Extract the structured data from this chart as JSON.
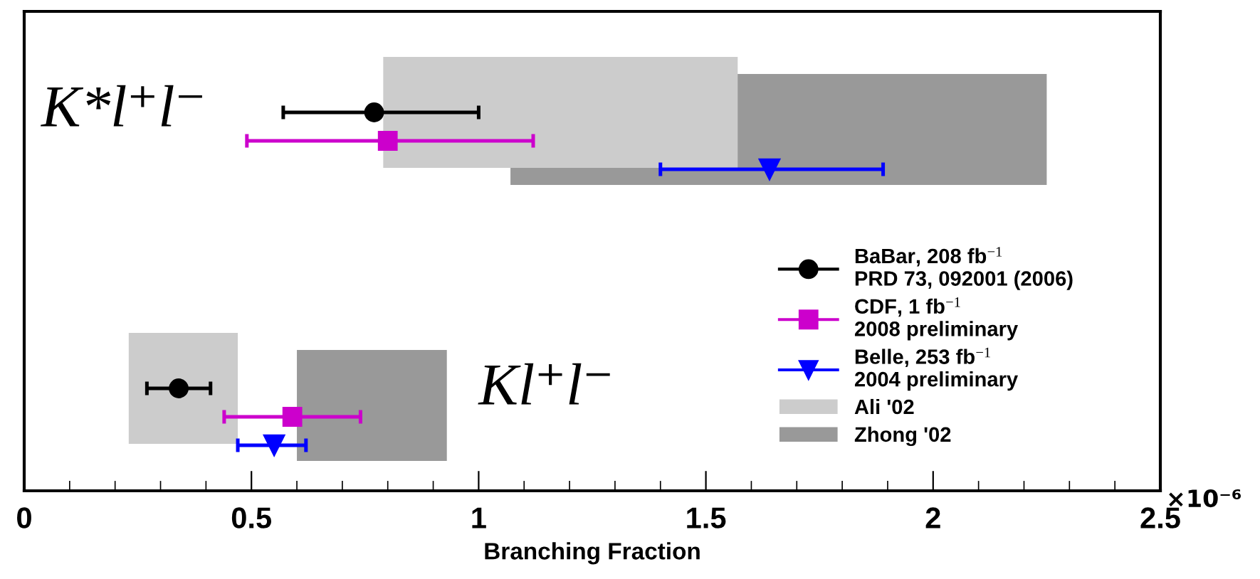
{
  "chart_data": {
    "type": "scatter",
    "orientation": "horizontal",
    "xlabel": "Branching Fraction",
    "categories": [
      null,
      null
    ],
    "series": [
      {
        "name": "Ali '02",
        "type": "bar",
        "color": "#cccccc",
        "base": [
          0.79,
          0.23
        ],
        "values": [
          0.78,
          0.24
        ]
      },
      {
        "name": "Zhong '02",
        "type": "bar",
        "color": "#999999",
        "base": [
          1.07,
          0.6
        ],
        "values": [
          1.18,
          0.33
        ]
      },
      {
        "name": "BaBar, 208 fb$^{−1}$\nPRD 73, 092001 (2006)",
        "color": "#000000",
        "marker": "circle",
        "values": [
          0.77,
          0.34
        ],
        "errors": [
          [
            0.57,
            1.0
          ],
          [
            0.27,
            0.41
          ]
        ]
      },
      {
        "name": "CDF, 1 fb$^{−1}$\n2008 preliminary",
        "color": "#cc00cc",
        "marker": "square",
        "values": [
          0.8,
          0.59
        ],
        "errors": [
          [
            0.49,
            1.12
          ],
          [
            0.44,
            0.74
          ]
        ]
      },
      {
        "name": "Belle, 253 fb$^{−1}$\n2004 preliminary",
        "color": "#0000ff",
        "marker": "triangle",
        "values": [
          1.64,
          0.55
        ],
        "errors": [
          [
            1.4,
            1.89
          ],
          [
            0.47,
            0.62
          ]
        ]
      }
    ],
    "annotations": [
      "K*l⁺l⁻",
      "Kl⁺l⁻",
      "×10⁻⁶"
    ],
    "xlim": [
      0,
      2.5
    ],
    "xticks": [
      0,
      0.5,
      1,
      1.5,
      2,
      2.5
    ],
    "tick_labels": "x",
    "grid": false,
    "legend": "right"
  }
}
